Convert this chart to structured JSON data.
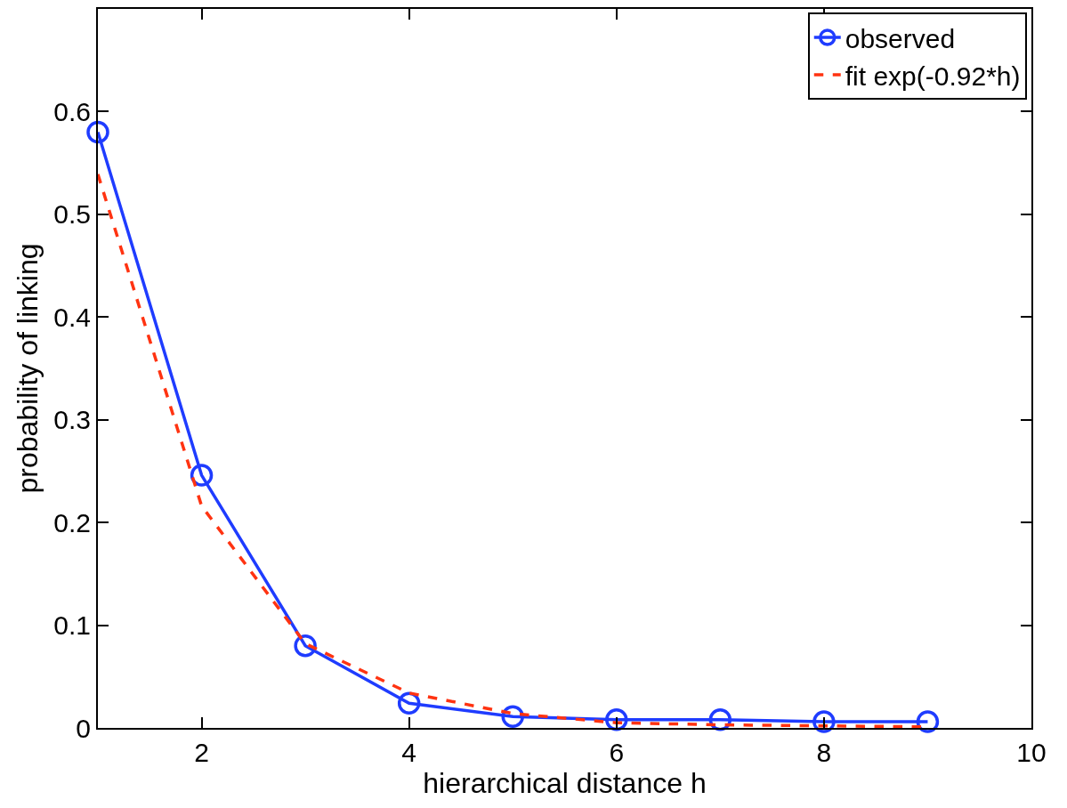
{
  "chart_data": {
    "type": "line",
    "xlabel": "hierarchical distance h",
    "ylabel": "probability of linking",
    "x": [
      1,
      2,
      3,
      4,
      5,
      6,
      7,
      8,
      9
    ],
    "series": [
      {
        "name": "observed",
        "color": "#1f3cff",
        "values": [
          0.58,
          0.246,
          0.08,
          0.024,
          0.011,
          0.008,
          0.008,
          0.006,
          0.006
        ],
        "marker": "circle",
        "line_style": "solid"
      },
      {
        "name": "fit exp(-0.92*h)",
        "color": "#ff3311",
        "values": [
          0.539,
          0.216,
          0.082,
          0.034,
          0.014,
          0.005,
          0.003,
          0.002,
          0.001
        ],
        "marker": "none",
        "line_style": "dashed"
      }
    ],
    "xlim": [
      1,
      10
    ],
    "ylim": [
      0,
      0.7
    ],
    "xticks": [
      2,
      4,
      6,
      8,
      10
    ],
    "yticks": [
      0,
      0.1,
      0.2,
      0.3,
      0.4,
      0.5,
      0.6
    ],
    "legend": "top right"
  }
}
